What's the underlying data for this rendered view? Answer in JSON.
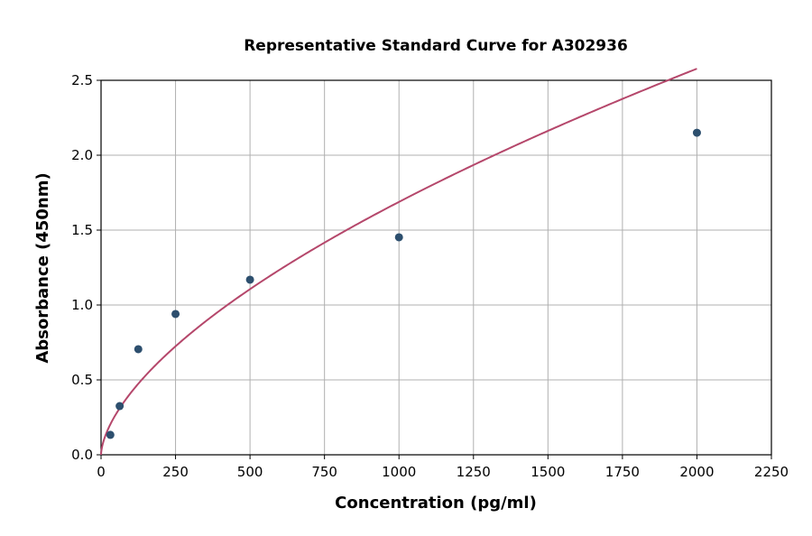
{
  "chart_data": {
    "type": "scatter",
    "title": "Representative Standard Curve for A302936",
    "xlabel": "Concentration (pg/ml)",
    "ylabel": "Absorbance (450nm)",
    "xlim": [
      0,
      2250
    ],
    "ylim": [
      0,
      2.5
    ],
    "xticks": [
      0,
      250,
      500,
      750,
      1000,
      1250,
      1500,
      1750,
      2000,
      2250
    ],
    "yticks": [
      "0.0",
      "0.5",
      "1.0",
      "1.5",
      "2.0",
      "2.5"
    ],
    "grid": true,
    "points": {
      "x": [
        31.25,
        62.5,
        125,
        250,
        500,
        1000,
        2000
      ],
      "y": [
        0.133,
        0.325,
        0.705,
        0.94,
        1.169,
        1.452,
        2.15
      ]
    },
    "fit_curve": {
      "type": "power-fit",
      "x_range": [
        0,
        2000
      ]
    },
    "colors": {
      "points": "#2d4f6e",
      "curve": "#b5476b"
    }
  }
}
